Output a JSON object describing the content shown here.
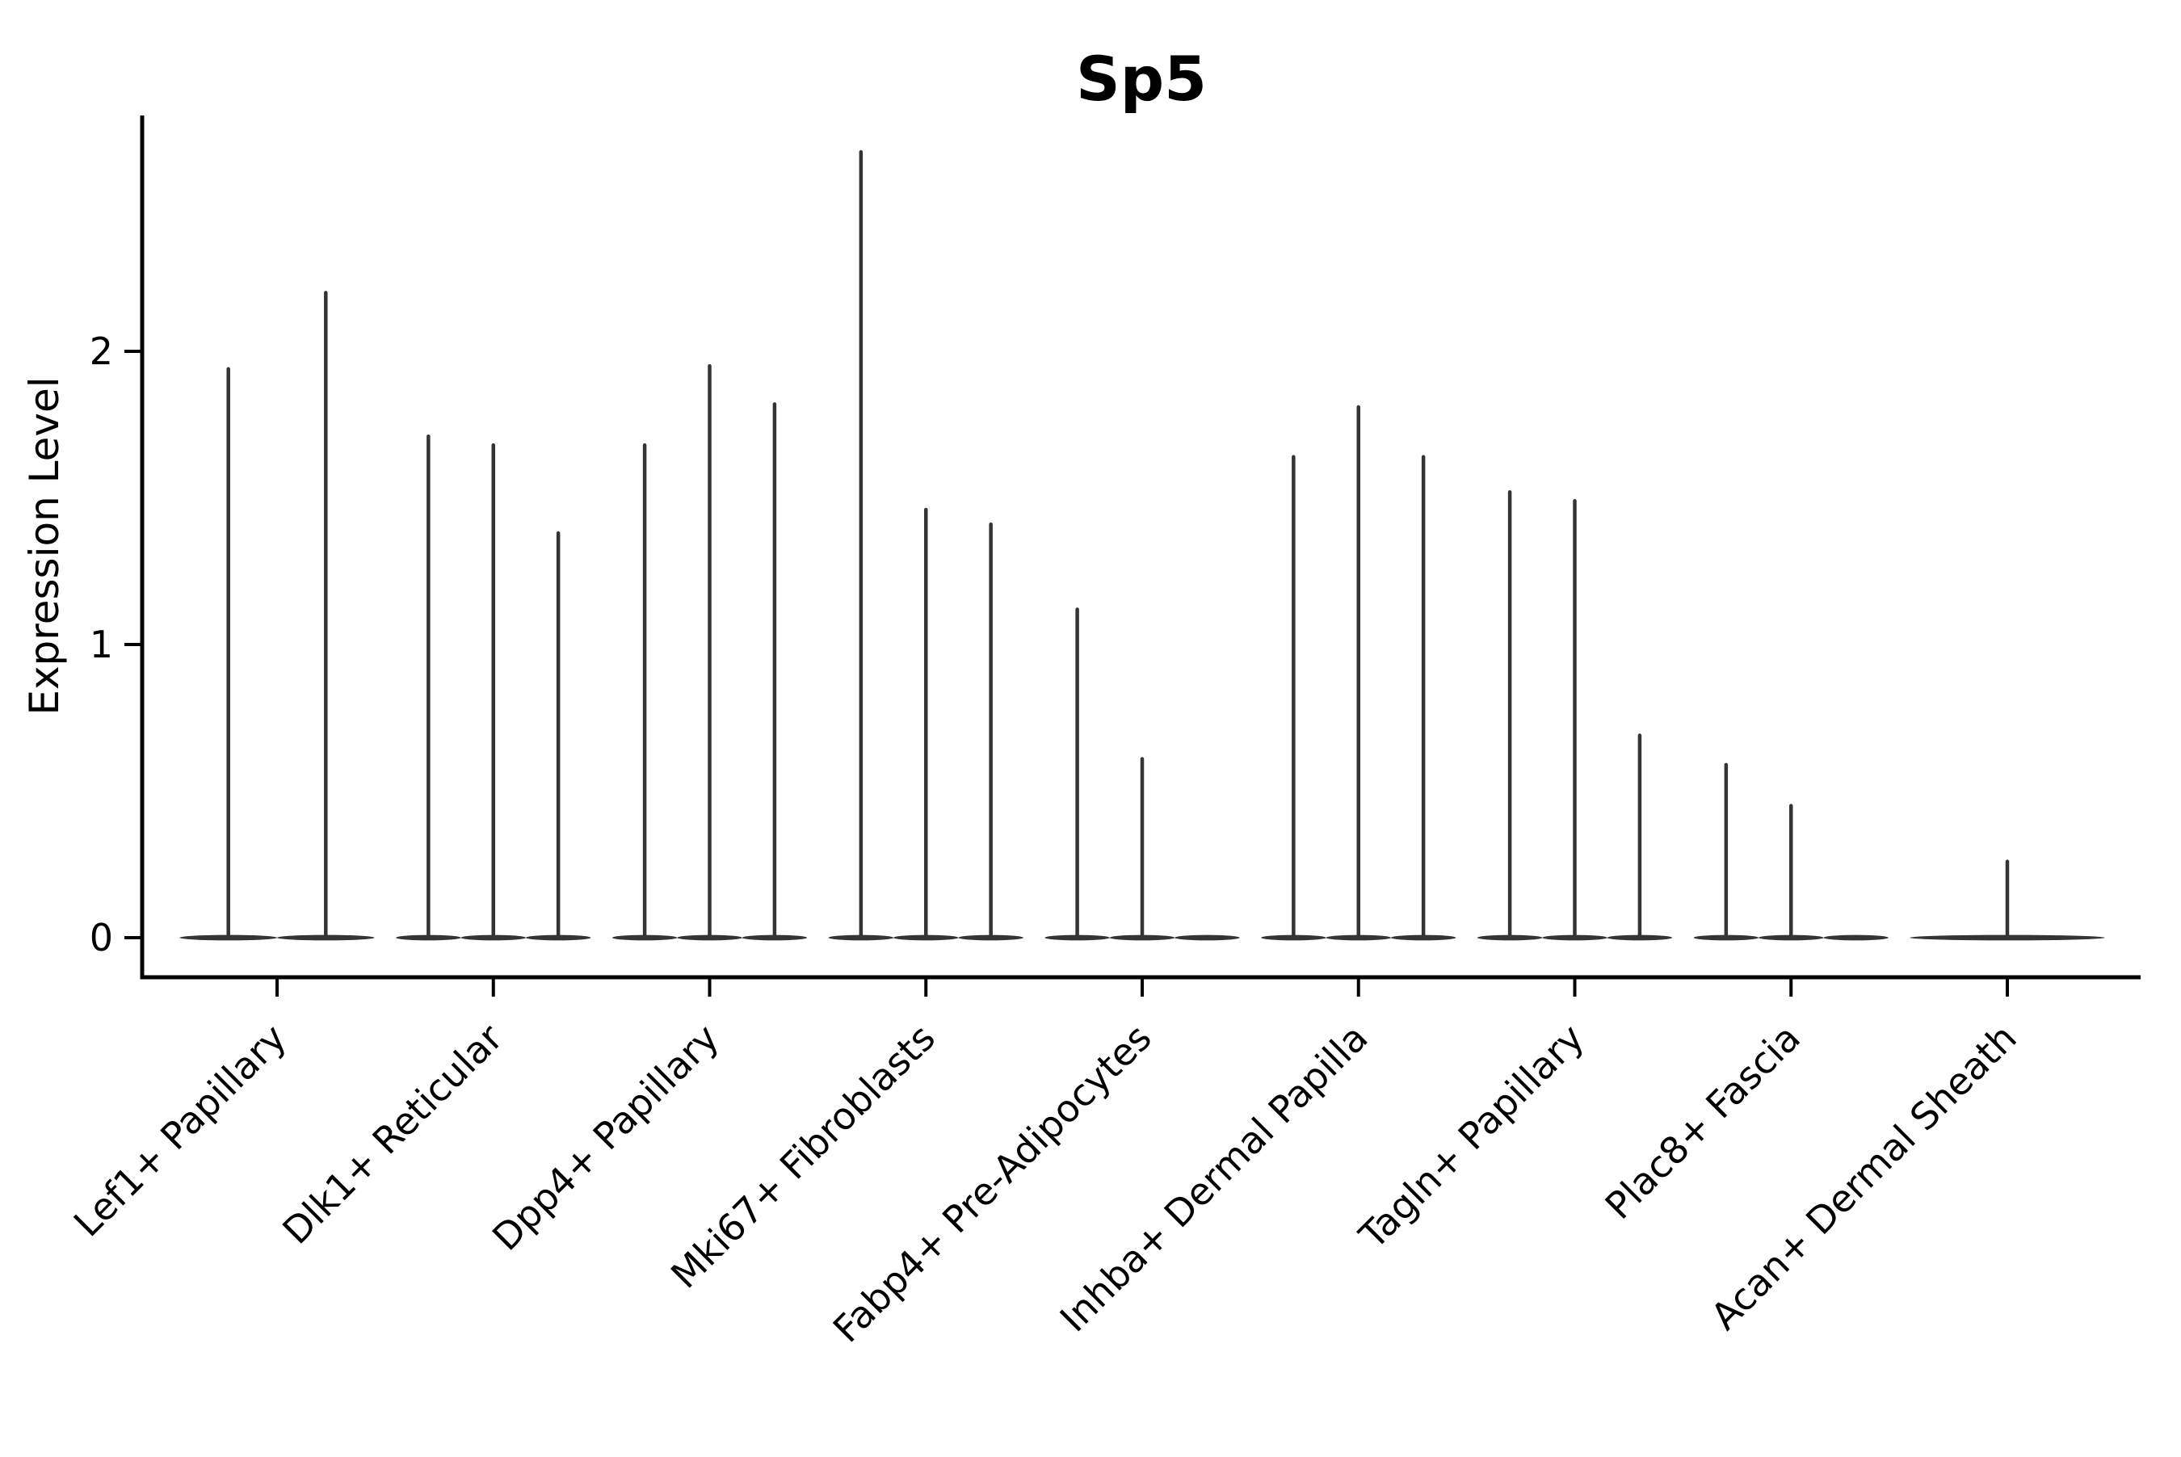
{
  "chart_data": {
    "type": "violin",
    "title": "Sp5",
    "xlabel": "",
    "ylabel": "Expression Level",
    "ylim": [
      0,
      2.8
    ],
    "yticks": [
      {
        "label": "0",
        "value": 0
      },
      {
        "label": "1",
        "value": 1
      },
      {
        "label": "2",
        "value": 2
      }
    ],
    "grid": false,
    "legend": "none",
    "note": "Violin plot of Sp5 expression; sparse data renders each violin as a flat base at 0 with a thin spike to the max expression value. Violins with value 0 are flat (base only).",
    "categories": [
      {
        "label": "Lef1+ Papillary",
        "violins": [
          1.94,
          2.2
        ]
      },
      {
        "label": "Dlk1+ Reticular",
        "violins": [
          1.71,
          1.68,
          1.38
        ]
      },
      {
        "label": "Dpp4+ Papillary",
        "violins": [
          1.68,
          1.95,
          1.82
        ]
      },
      {
        "label": "Mki67+ Fibroblasts",
        "violins": [
          2.68,
          1.46,
          1.41
        ]
      },
      {
        "label": "Fabp4+ Pre-Adipocytes",
        "violins": [
          1.12,
          0.61,
          0
        ]
      },
      {
        "label": "Inhba+ Dermal Papilla",
        "violins": [
          1.64,
          1.81,
          1.64
        ]
      },
      {
        "label": "Tagln+ Papillary",
        "violins": [
          1.52,
          1.49,
          0.69
        ]
      },
      {
        "label": "Plac8+ Fascia",
        "violins": [
          0.59,
          0.45,
          0
        ]
      },
      {
        "label": "Acan+ Dermal Sheath",
        "violins": [
          0.26
        ]
      }
    ],
    "colors": {
      "violin": "#343434",
      "axis": "#000000",
      "text": "#000000",
      "background": "#ffffff"
    }
  }
}
